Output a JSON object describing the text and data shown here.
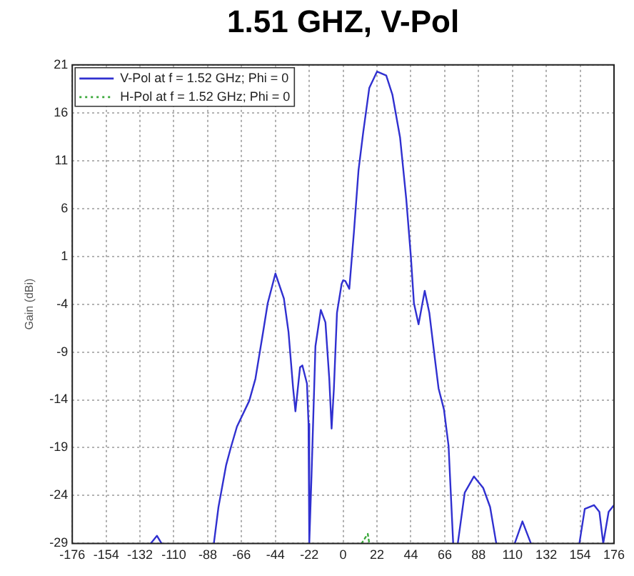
{
  "chart_data": {
    "type": "line",
    "title": "1.51 GHZ, V-Pol",
    "ylabel": "Gain (dBi)",
    "xlim": [
      -176,
      176
    ],
    "xticks": [
      -176,
      -154,
      -132,
      -110,
      -88,
      -66,
      -44,
      -22,
      0,
      22,
      44,
      66,
      88,
      110,
      132,
      154,
      176
    ],
    "ylim": [
      -29,
      21
    ],
    "yticks": [
      -29,
      -24,
      -19,
      -14,
      -9,
      -4,
      1,
      6,
      11,
      16,
      21
    ],
    "grid": true,
    "legend": "top left",
    "marker": "none",
    "series": [
      {
        "name": "V-Pol at f = 1.52 GHz; Phi = 0",
        "color": "#3030d0",
        "line_style": "solid",
        "x": [
          -125,
          -121,
          -118,
          -100,
          -84,
          -81,
          -76,
          -73,
          -69,
          -61,
          -57,
          -52,
          -49,
          -44,
          -38.5,
          -35.5,
          -32.5,
          -31,
          -28,
          -26.5,
          -23.5,
          -22.5,
          -22,
          -20.5,
          -18,
          -14.5,
          -11.5,
          -9,
          -7.5,
          -6,
          -4,
          -1,
          0,
          1.5,
          4,
          7,
          10,
          13,
          17,
          22,
          28,
          32,
          37,
          41,
          44,
          46,
          49,
          53,
          56,
          59,
          62,
          65.5,
          68.5,
          71.5,
          73,
          74.5,
          79,
          85,
          91,
          95.5,
          99.5,
          105,
          111.5,
          116.5,
          122,
          138,
          153.5,
          157,
          163,
          166.5,
          169,
          172.5,
          176
        ],
        "values": [
          -29,
          -28.2,
          -29,
          null,
          -29,
          -25.2,
          -20.8,
          -19,
          -16.8,
          -14.1,
          -11.8,
          -6.9,
          -3.9,
          -0.8,
          -3.4,
          -6.9,
          -12.8,
          -15.2,
          -10.6,
          -10.4,
          -12.3,
          -16.5,
          -29,
          -21.7,
          -8.4,
          -4.6,
          -5.9,
          -11.8,
          -17,
          -12.8,
          -4.9,
          -1.9,
          -1.5,
          -1.6,
          -2.4,
          3.5,
          10,
          13.9,
          18.6,
          20.3,
          19.9,
          17.9,
          13.4,
          7,
          1,
          -3.9,
          -6.1,
          -2.6,
          -4.9,
          -8.9,
          -12.8,
          -15,
          -18.8,
          -29,
          null,
          -29,
          -23.7,
          -22,
          -23.2,
          -25.2,
          -29,
          null,
          -29,
          -26.7,
          -29,
          null,
          -29,
          -25.4,
          -25,
          -25.7,
          -29,
          -25.7,
          -25
        ]
      },
      {
        "name": "H-Pol at f = 1.52 GHz; Phi = 0",
        "color": "#3aa83a",
        "line_style": "dotted",
        "x": [
          12,
          16,
          17
        ],
        "values": [
          -29,
          -28,
          -29
        ]
      }
    ]
  }
}
